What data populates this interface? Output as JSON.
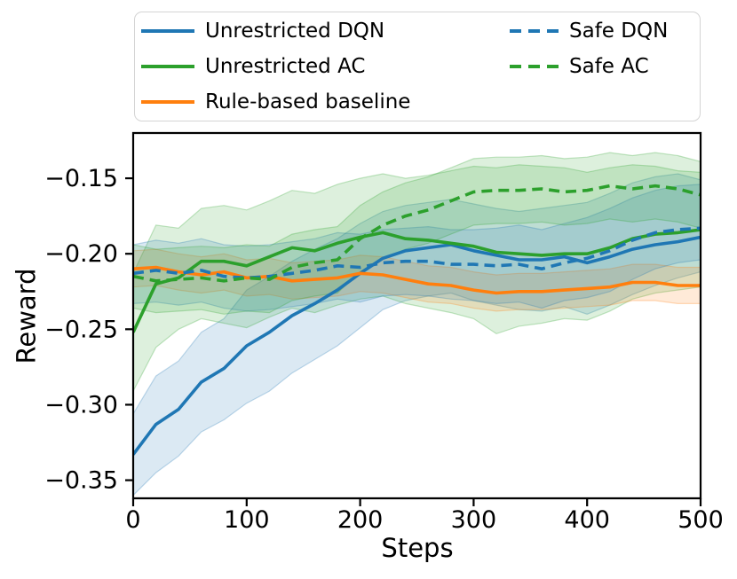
{
  "figure": {
    "background": "#ffffff"
  },
  "legend": {
    "entries": [
      {
        "label": "Unrestricted DQN",
        "color": "#1f77b4",
        "dash": false,
        "column": 1
      },
      {
        "label": "Unrestricted AC",
        "color": "#2ca02c",
        "dash": false,
        "column": 1
      },
      {
        "label": "Rule-based baseline",
        "color": "#ff7f0e",
        "dash": false,
        "column": 1
      },
      {
        "label": "Safe DQN",
        "color": "#1f77b4",
        "dash": true,
        "column": 2
      },
      {
        "label": "Safe AC",
        "color": "#2ca02c",
        "dash": true,
        "column": 2
      }
    ]
  },
  "chart_data": {
    "type": "line",
    "title": "",
    "xlabel": "Steps",
    "ylabel": "Reward",
    "xlim": [
      0,
      500
    ],
    "ylim": [
      -0.362,
      -0.12
    ],
    "grid": false,
    "legend_position": "top outside plot, 2 columns",
    "x_ticks": [
      0,
      100,
      200,
      300,
      400,
      500
    ],
    "x_tick_labels": [
      "0",
      "100",
      "200",
      "300",
      "400",
      "500"
    ],
    "y_ticks": [
      -0.15,
      -0.2,
      -0.25,
      -0.3,
      -0.35
    ],
    "y_tick_labels": [
      "−0.15",
      "−0.20",
      "−0.25",
      "−0.30",
      "−0.35"
    ],
    "x": [
      0,
      20,
      40,
      60,
      80,
      100,
      120,
      140,
      160,
      180,
      200,
      220,
      240,
      260,
      280,
      300,
      320,
      340,
      360,
      380,
      400,
      420,
      440,
      460,
      480,
      500
    ],
    "series": [
      {
        "name": "Unrestricted DQN",
        "color": "#1f77b4",
        "line_style": "solid",
        "values": [
          -0.333,
          -0.313,
          -0.303,
          -0.285,
          -0.276,
          -0.261,
          -0.252,
          -0.241,
          -0.233,
          -0.224,
          -0.213,
          -0.203,
          -0.198,
          -0.196,
          -0.194,
          -0.198,
          -0.201,
          -0.204,
          -0.204,
          -0.202,
          -0.206,
          -0.202,
          -0.197,
          -0.194,
          -0.192,
          -0.189
        ],
        "band_lower": [
          -0.36,
          -0.345,
          -0.334,
          -0.318,
          -0.31,
          -0.299,
          -0.291,
          -0.279,
          -0.27,
          -0.261,
          -0.249,
          -0.237,
          -0.231,
          -0.228,
          -0.226,
          -0.231,
          -0.234,
          -0.237,
          -0.238,
          -0.235,
          -0.24,
          -0.234,
          -0.227,
          -0.221,
          -0.216,
          -0.212
        ],
        "band_upper": [
          -0.306,
          -0.281,
          -0.271,
          -0.252,
          -0.243,
          -0.224,
          -0.215,
          -0.205,
          -0.197,
          -0.19,
          -0.18,
          -0.172,
          -0.168,
          -0.166,
          -0.164,
          -0.167,
          -0.17,
          -0.172,
          -0.17,
          -0.168,
          -0.166,
          -0.16,
          -0.153,
          -0.149,
          -0.147,
          -0.151
        ]
      },
      {
        "name": "Unrestricted AC",
        "color": "#2ca02c",
        "line_style": "solid",
        "values": [
          -0.252,
          -0.22,
          -0.216,
          -0.205,
          -0.205,
          -0.208,
          -0.202,
          -0.196,
          -0.198,
          -0.193,
          -0.189,
          -0.186,
          -0.19,
          -0.191,
          -0.193,
          -0.195,
          -0.199,
          -0.2,
          -0.201,
          -0.2,
          -0.2,
          -0.196,
          -0.19,
          -0.187,
          -0.186,
          -0.184
        ],
        "band_lower": [
          -0.291,
          -0.262,
          -0.25,
          -0.243,
          -0.246,
          -0.249,
          -0.242,
          -0.236,
          -0.239,
          -0.234,
          -0.23,
          -0.228,
          -0.233,
          -0.236,
          -0.239,
          -0.243,
          -0.253,
          -0.248,
          -0.246,
          -0.243,
          -0.244,
          -0.238,
          -0.23,
          -0.226,
          -0.224,
          -0.222
        ],
        "band_upper": [
          -0.213,
          -0.181,
          -0.183,
          -0.17,
          -0.168,
          -0.171,
          -0.165,
          -0.158,
          -0.16,
          -0.154,
          -0.15,
          -0.147,
          -0.15,
          -0.148,
          -0.145,
          -0.142,
          -0.143,
          -0.141,
          -0.142,
          -0.143,
          -0.146,
          -0.143,
          -0.141,
          -0.142,
          -0.145,
          -0.146
        ]
      },
      {
        "name": "Rule-based baseline",
        "color": "#ff7f0e",
        "line_style": "solid",
        "values": [
          -0.21,
          -0.209,
          -0.212,
          -0.214,
          -0.212,
          -0.216,
          -0.215,
          -0.218,
          -0.217,
          -0.216,
          -0.213,
          -0.214,
          -0.217,
          -0.22,
          -0.221,
          -0.224,
          -0.226,
          -0.225,
          -0.225,
          -0.224,
          -0.223,
          -0.222,
          -0.219,
          -0.219,
          -0.221,
          -0.221
        ],
        "band_lower": [
          -0.222,
          -0.221,
          -0.224,
          -0.226,
          -0.224,
          -0.228,
          -0.227,
          -0.23,
          -0.229,
          -0.228,
          -0.225,
          -0.226,
          -0.229,
          -0.232,
          -0.233,
          -0.236,
          -0.238,
          -0.237,
          -0.237,
          -0.236,
          -0.235,
          -0.234,
          -0.231,
          -0.231,
          -0.233,
          -0.233
        ],
        "band_upper": [
          -0.198,
          -0.197,
          -0.2,
          -0.202,
          -0.2,
          -0.204,
          -0.203,
          -0.206,
          -0.205,
          -0.204,
          -0.201,
          -0.202,
          -0.205,
          -0.208,
          -0.209,
          -0.212,
          -0.214,
          -0.213,
          -0.213,
          -0.212,
          -0.211,
          -0.21,
          -0.207,
          -0.207,
          -0.209,
          -0.209
        ]
      },
      {
        "name": "Safe DQN",
        "color": "#1f77b4",
        "line_style": "dashed",
        "values": [
          -0.213,
          -0.211,
          -0.213,
          -0.211,
          -0.215,
          -0.216,
          -0.215,
          -0.213,
          -0.211,
          -0.208,
          -0.209,
          -0.206,
          -0.205,
          -0.205,
          -0.207,
          -0.207,
          -0.208,
          -0.207,
          -0.21,
          -0.206,
          -0.203,
          -0.198,
          -0.191,
          -0.186,
          -0.184,
          -0.183
        ],
        "band_lower": [
          -0.233,
          -0.232,
          -0.234,
          -0.232,
          -0.236,
          -0.238,
          -0.237,
          -0.235,
          -0.233,
          -0.23,
          -0.232,
          -0.228,
          -0.227,
          -0.228,
          -0.23,
          -0.231,
          -0.233,
          -0.232,
          -0.236,
          -0.231,
          -0.229,
          -0.225,
          -0.217,
          -0.21,
          -0.206,
          -0.204
        ],
        "band_upper": [
          -0.194,
          -0.191,
          -0.193,
          -0.19,
          -0.194,
          -0.195,
          -0.194,
          -0.192,
          -0.19,
          -0.186,
          -0.187,
          -0.184,
          -0.183,
          -0.182,
          -0.184,
          -0.184,
          -0.183,
          -0.181,
          -0.184,
          -0.18,
          -0.176,
          -0.17,
          -0.163,
          -0.158,
          -0.155,
          -0.154
        ]
      },
      {
        "name": "Safe AC",
        "color": "#2ca02c",
        "line_style": "dashed",
        "values": [
          -0.215,
          -0.218,
          -0.217,
          -0.216,
          -0.218,
          -0.216,
          -0.217,
          -0.209,
          -0.206,
          -0.204,
          -0.19,
          -0.181,
          -0.175,
          -0.171,
          -0.165,
          -0.159,
          -0.158,
          -0.158,
          -0.157,
          -0.159,
          -0.158,
          -0.155,
          -0.157,
          -0.155,
          -0.157,
          -0.161
        ],
        "band_lower": [
          -0.236,
          -0.239,
          -0.238,
          -0.237,
          -0.24,
          -0.238,
          -0.239,
          -0.231,
          -0.228,
          -0.226,
          -0.212,
          -0.203,
          -0.197,
          -0.193,
          -0.187,
          -0.181,
          -0.18,
          -0.18,
          -0.179,
          -0.181,
          -0.18,
          -0.177,
          -0.179,
          -0.177,
          -0.179,
          -0.183
        ],
        "band_upper": [
          -0.194,
          -0.197,
          -0.196,
          -0.195,
          -0.196,
          -0.194,
          -0.195,
          -0.187,
          -0.184,
          -0.182,
          -0.168,
          -0.159,
          -0.153,
          -0.149,
          -0.143,
          -0.137,
          -0.136,
          -0.136,
          -0.135,
          -0.137,
          -0.136,
          -0.133,
          -0.135,
          -0.133,
          -0.135,
          -0.139
        ]
      }
    ]
  }
}
